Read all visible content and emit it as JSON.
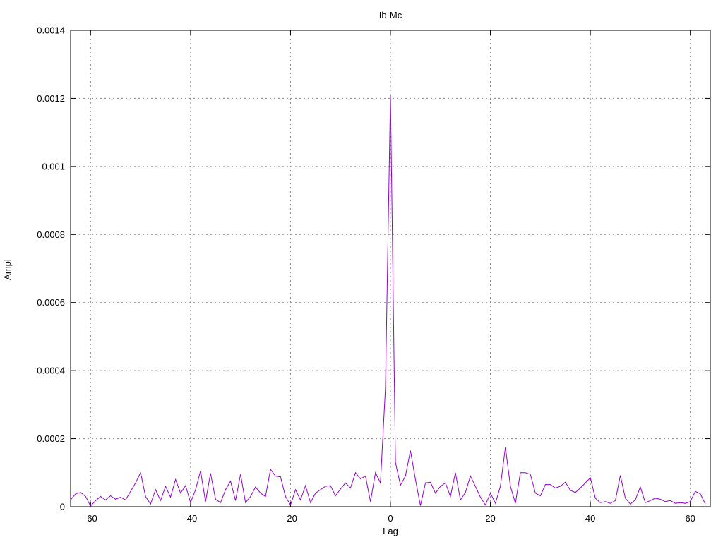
{
  "page": {
    "background": "#ffffff"
  },
  "chart_data": {
    "type": "line",
    "title": "Ib-Mc",
    "xlabel": "Lag",
    "ylabel": "Ampl",
    "xlim": [
      -64,
      64
    ],
    "ylim": [
      0,
      0.0014
    ],
    "grid": true,
    "legend": "none",
    "line_color": "#9400d3",
    "grid_color": "#8a8a8a",
    "border_color": "#000000",
    "text_color": "#000000",
    "xticks": [
      {
        "v": -60,
        "label": "-60"
      },
      {
        "v": -40,
        "label": "-40"
      },
      {
        "v": -20,
        "label": "-20"
      },
      {
        "v": 0,
        "label": "0"
      },
      {
        "v": 20,
        "label": "20"
      },
      {
        "v": 40,
        "label": "40"
      },
      {
        "v": 60,
        "label": "60"
      }
    ],
    "yticks": [
      {
        "v": 0,
        "label": "0"
      },
      {
        "v": 0.0002,
        "label": "0.0002"
      },
      {
        "v": 0.0004,
        "label": "0.0004"
      },
      {
        "v": 0.0006,
        "label": "0.0006"
      },
      {
        "v": 0.0008,
        "label": "0.0008"
      },
      {
        "v": 0.001,
        "label": "0.001"
      },
      {
        "v": 0.0012,
        "label": "0.0012"
      },
      {
        "v": 0.0014,
        "label": "0.0014"
      }
    ],
    "peak": {
      "x": 0,
      "y": 0.00121
    },
    "x": [
      -64,
      -63,
      -62,
      -61,
      -60,
      -59,
      -58,
      -57,
      -56,
      -55,
      -54,
      -53,
      -52,
      -51,
      -50,
      -49,
      -48,
      -47,
      -46,
      -45,
      -44,
      -43,
      -42,
      -41,
      -40,
      -39,
      -38,
      -37,
      -36,
      -35,
      -34,
      -33,
      -32,
      -31,
      -30,
      -29,
      -28,
      -27,
      -26,
      -25,
      -24,
      -23,
      -22,
      -21,
      -20,
      -19,
      -18,
      -17,
      -16,
      -15,
      -14,
      -13,
      -12,
      -11,
      -10,
      -9,
      -8,
      -7,
      -6,
      -5,
      -4,
      -3,
      -2,
      -1,
      0,
      1,
      2,
      3,
      4,
      5,
      6,
      7,
      8,
      9,
      10,
      11,
      12,
      13,
      14,
      15,
      16,
      17,
      18,
      19,
      20,
      21,
      22,
      23,
      24,
      25,
      26,
      27,
      28,
      29,
      30,
      31,
      32,
      33,
      34,
      35,
      36,
      37,
      38,
      39,
      40,
      41,
      42,
      43,
      44,
      45,
      46,
      47,
      48,
      49,
      50,
      51,
      52,
      53,
      54,
      55,
      56,
      57,
      58,
      59,
      60,
      61,
      62,
      63
    ],
    "y": [
      2e-05,
      3.8e-05,
      4.2e-05,
      3e-05,
      2e-06,
      1.8e-05,
      3e-05,
      2e-05,
      3.2e-05,
      2.2e-05,
      2.8e-05,
      2e-05,
      4.5e-05,
      7e-05,
      0.0001,
      3e-05,
      8e-06,
      5e-05,
      1.8e-05,
      6e-05,
      2.8e-05,
      8e-05,
      4e-05,
      6.2e-05,
      1.2e-05,
      5e-05,
      0.000105,
      1.5e-05,
      9.8e-05,
      2.2e-05,
      1.2e-05,
      5e-05,
      7.5e-05,
      1.8e-05,
      9.5e-05,
      1.2e-05,
      3e-05,
      5.8e-05,
      4e-05,
      3e-05,
      0.00011,
      9e-05,
      8.8e-05,
      3e-05,
      5e-06,
      5e-05,
      2e-05,
      6.2e-05,
      1.2e-05,
      4e-05,
      5e-05,
      6e-05,
      6.2e-05,
      3.2e-05,
      5.2e-05,
      7e-05,
      5.5e-05,
      0.0001,
      8.2e-05,
      9e-05,
      1.5e-05,
      0.0001,
      7e-05,
      0.00035,
      0.00121,
      0.00013,
      6.3e-05,
      9e-05,
      0.000165,
      8e-05,
      3e-06,
      7e-05,
      7.2e-05,
      4e-05,
      6e-05,
      7e-05,
      3e-05,
      0.0001,
      2e-05,
      4.2e-05,
      9e-05,
      6e-05,
      2.8e-05,
      5e-06,
      4e-05,
      1e-05,
      6e-05,
      0.000175,
      6e-05,
      1e-05,
      0.0001,
      0.0001,
      9.5e-05,
      4e-05,
      3.2e-05,
      6.5e-05,
      6.5e-05,
      5.5e-05,
      6e-05,
      7.2e-05,
      4.8e-05,
      4.2e-05,
      5.5e-05,
      7e-05,
      8.5e-05,
      2.5e-05,
      1.2e-05,
      1.5e-05,
      1e-05,
      1.8e-05,
      9.2e-05,
      2.5e-05,
      8e-06,
      2e-05,
      5.8e-05,
      1.2e-05,
      1.8e-05,
      2.5e-05,
      2.2e-05,
      1.5e-05,
      1.8e-05,
      1e-05,
      1.2e-05,
      1e-05,
      1.5e-05,
      4.5e-05,
      3.8e-05,
      8e-06
    ]
  }
}
